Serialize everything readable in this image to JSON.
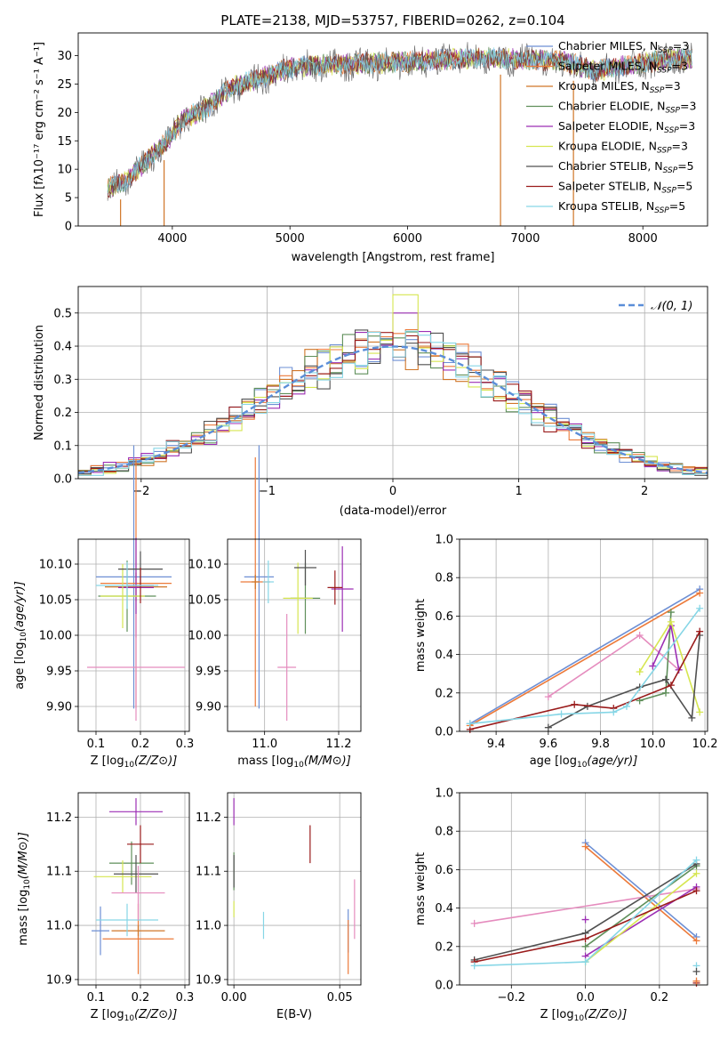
{
  "figure_title": "PLATE=2138, MJD=53757, FIBERID=0262, z=0.104",
  "series_colors": {
    "Chabrier MILES": "#6d8fd4",
    "Salpeter MILES": "#ec7a3a",
    "Kroupa MILES": "#d07628",
    "Chabrier ELODIE": "#5f8f5a",
    "Salpeter ELODIE": "#9c2fb4",
    "Kroupa ELODIE": "#d6e650",
    "Chabrier STELIB": "#505050",
    "Salpeter STELIB": "#9a1b1b",
    "Kroupa STELIB": "#86d6e6",
    "pink": "#e58cbe"
  },
  "chart_data": [
    {
      "id": "spectrum",
      "type": "line",
      "title": "PLATE=2138, MJD=53757, FIBERID=0262, z=0.104",
      "xlabel": "wavelength [Angstrom, rest frame]",
      "ylabel": "Flux [fλ10⁻¹⁷ erg cm⁻² s⁻¹ A⁻¹]",
      "xlim": [
        3200,
        8550
      ],
      "ylim": [
        0,
        34
      ],
      "xticks": [
        4000,
        5000,
        6000,
        7000,
        8000
      ],
      "yticks": [
        0,
        5,
        10,
        15,
        20,
        25,
        30
      ],
      "grid": false,
      "legend_position": "right",
      "legend": [
        {
          "label": "Chabrier MILES, N",
          "sub": "SSP",
          "suffix": "=3"
        },
        {
          "label": "Salpeter MILES, N",
          "sub": "SSP",
          "suffix": "=3"
        },
        {
          "label": "Kroupa MILES, N",
          "sub": "SSP",
          "suffix": "=3"
        },
        {
          "label": "Chabrier ELODIE, N",
          "sub": "SSP",
          "suffix": "=3"
        },
        {
          "label": "Salpeter ELODIE, N",
          "sub": "SSP",
          "suffix": "=3"
        },
        {
          "label": "Kroupa ELODIE, N",
          "sub": "SSP",
          "suffix": "=3"
        },
        {
          "label": "Chabrier STELIB, N",
          "sub": "SSP",
          "suffix": "=5"
        },
        {
          "label": "Salpeter STELIB, N",
          "sub": "SSP",
          "suffix": "=5"
        },
        {
          "label": "Kroupa STELIB, N",
          "sub": "SSP",
          "suffix": "=5"
        }
      ],
      "continuum": {
        "x": [
          3450,
          3600,
          3800,
          3950,
          4100,
          4300,
          4500,
          4800,
          5000,
          5300,
          5600,
          6000,
          6300,
          6600,
          7000,
          7300,
          7600,
          7900,
          8200,
          8400
        ],
        "y": [
          6.8,
          8.0,
          12.0,
          15.0,
          19.0,
          21.0,
          24.5,
          26.5,
          28.0,
          28.5,
          28.8,
          29.0,
          29.5,
          29.8,
          29.5,
          29.2,
          27.5,
          28.5,
          29.5,
          29.5
        ]
      },
      "drop_lines_x": [
        3560,
        3930,
        6790,
        7410
      ]
    },
    {
      "id": "residuals",
      "type": "histogram",
      "xlabel": "(data-model)/error",
      "ylabel": "Normed distribution",
      "xlim": [
        -2.5,
        2.5
      ],
      "ylim": [
        0,
        0.58
      ],
      "xticks": [
        -2,
        -1,
        0,
        1,
        2
      ],
      "yticks": [
        0.0,
        0.1,
        0.2,
        0.3,
        0.4,
        0.5
      ],
      "grid": true,
      "bin_width": 0.1,
      "legend_position": "upper right",
      "reference_curve": {
        "name": "𝒩(0, 1)",
        "mu": 0,
        "sigma": 1
      }
    },
    {
      "id": "age-vs-Z",
      "type": "scatter",
      "xlabel": "Z [log10(Z/Z⊙)]",
      "ylabel": "age  [log10(age/yr)]",
      "xlim": [
        0.06,
        0.31
      ],
      "ylim": [
        9.865,
        10.135
      ],
      "xticks": [
        0.1,
        0.2,
        0.3
      ],
      "yticks": [
        9.9,
        9.95,
        10.0,
        10.05,
        10.1
      ],
      "grid": true,
      "points": [
        {
          "c": "Chabrier MILES",
          "x": 0.185,
          "y": 10.082,
          "xerr": 0.085,
          "yerr": 0.185
        },
        {
          "c": "Salpeter MILES",
          "x": 0.19,
          "y": 10.073,
          "xerr": 0.08,
          "yerr": 0.175
        },
        {
          "c": "Kroupa MILES",
          "x": 0.19,
          "y": 10.068,
          "xerr": 0.07,
          "yerr": 0.02
        },
        {
          "c": "Chabrier ELODIE",
          "x": 0.17,
          "y": 10.055,
          "xerr": 0.065,
          "yerr": 0.05
        },
        {
          "c": "Salpeter ELODIE",
          "x": 0.19,
          "y": 10.067,
          "xerr": 0.04,
          "yerr": 0.07
        },
        {
          "c": "Kroupa ELODIE",
          "x": 0.16,
          "y": 10.055,
          "xerr": 0.05,
          "yerr": 0.045
        },
        {
          "c": "Chabrier STELIB",
          "x": 0.2,
          "y": 10.093,
          "xerr": 0.05,
          "yerr": 0.025
        },
        {
          "c": "Salpeter STELIB",
          "x": 0.2,
          "y": 10.07,
          "xerr": 0.03,
          "yerr": 0.025
        },
        {
          "c": "Kroupa STELIB",
          "x": 0.17,
          "y": 10.07,
          "xerr": 0.07,
          "yerr": 0.033
        },
        {
          "c": "pink",
          "x": 0.19,
          "y": 9.955,
          "xerr": 0.11,
          "yerr": 0.075
        }
      ]
    },
    {
      "id": "age-vs-mass",
      "type": "scatter",
      "xlabel": "mass [log10(M/M⊙)]",
      "ylabel": "",
      "xlim": [
        10.9,
        11.26
      ],
      "ylim": [
        9.865,
        10.135
      ],
      "xticks": [
        11.0,
        11.2
      ],
      "yticks": [
        9.9,
        9.95,
        10.0,
        10.05,
        10.1
      ],
      "grid": true,
      "points": [
        {
          "c": "Chabrier MILES",
          "x": 10.985,
          "y": 10.082,
          "xerr": 0.04,
          "yerr": 0.185
        },
        {
          "c": "Salpeter MILES",
          "x": 10.975,
          "y": 10.075,
          "xerr": 0.04,
          "yerr": 0.175
        },
        {
          "c": "Kroupa MILES",
          "x": 10.975,
          "y": 10.075,
          "xerr": 0.01,
          "yerr": 0.01
        },
        {
          "c": "Chabrier ELODIE",
          "x": 11.11,
          "y": 10.052,
          "xerr": 0.04,
          "yerr": 0.05
        },
        {
          "c": "Salpeter ELODIE",
          "x": 11.21,
          "y": 10.065,
          "xerr": 0.03,
          "yerr": 0.06
        },
        {
          "c": "Kroupa ELODIE",
          "x": 11.09,
          "y": 10.052,
          "xerr": 0.04,
          "yerr": 0.05
        },
        {
          "c": "Chabrier STELIB",
          "x": 11.11,
          "y": 10.095,
          "xerr": 0.03,
          "yerr": 0.025
        },
        {
          "c": "Salpeter STELIB",
          "x": 11.19,
          "y": 10.067,
          "xerr": 0.02,
          "yerr": 0.024
        },
        {
          "c": "Kroupa STELIB",
          "x": 11.01,
          "y": 10.075,
          "xerr": 0.015,
          "yerr": 0.03
        },
        {
          "c": "pink",
          "x": 11.06,
          "y": 9.955,
          "xerr": 0.025,
          "yerr": 0.075
        }
      ]
    },
    {
      "id": "weights-vs-age",
      "type": "line",
      "xlabel": "age  [log10(age/yr)]",
      "ylabel": "mass weight",
      "xlim": [
        9.26,
        10.21
      ],
      "ylim": [
        0,
        1
      ],
      "xticks": [
        9.4,
        9.6,
        9.8,
        10.0,
        10.2
      ],
      "yticks": [
        0.0,
        0.2,
        0.4,
        0.6,
        0.8,
        1.0
      ],
      "grid": true,
      "series": [
        {
          "c": "Chabrier MILES",
          "x": [
            9.3,
            10.18
          ],
          "y": [
            0.04,
            0.74
          ]
        },
        {
          "c": "Salpeter MILES",
          "x": [
            9.3,
            10.18
          ],
          "y": [
            0.03,
            0.72
          ]
        },
        {
          "c": "pink",
          "x": [
            9.6,
            9.95,
            10.1
          ],
          "y": [
            0.18,
            0.5,
            0.32
          ]
        },
        {
          "c": "Chabrier ELODIE",
          "x": [
            9.95,
            10.05,
            10.07
          ],
          "y": [
            0.16,
            0.2,
            0.62
          ]
        },
        {
          "c": "Salpeter ELODIE",
          "x": [
            10.0,
            10.07,
            10.1
          ],
          "y": [
            0.34,
            0.55,
            0.32
          ]
        },
        {
          "c": "Kroupa ELODIE",
          "x": [
            9.95,
            10.07,
            10.18
          ],
          "y": [
            0.31,
            0.57,
            0.1
          ]
        },
        {
          "c": "Chabrier STELIB",
          "x": [
            9.6,
            9.75,
            9.95,
            10.05,
            10.15,
            10.18
          ],
          "y": [
            0.02,
            0.13,
            0.23,
            0.27,
            0.07,
            0.5
          ]
        },
        {
          "c": "Salpeter STELIB",
          "x": [
            9.3,
            9.7,
            9.85,
            10.07,
            10.18
          ],
          "y": [
            0.01,
            0.14,
            0.12,
            0.24,
            0.52
          ]
        },
        {
          "c": "Kroupa STELIB",
          "x": [
            9.3,
            9.65,
            9.85,
            9.9,
            10.18
          ],
          "y": [
            0.04,
            0.09,
            0.1,
            0.13,
            0.64
          ]
        }
      ]
    },
    {
      "id": "mass-vs-Z",
      "type": "scatter",
      "xlabel": "Z [log10(Z/Z⊙)]",
      "ylabel": "mass [log10(M/M⊙)]",
      "xlim": [
        0.06,
        0.31
      ],
      "ylim": [
        10.89,
        11.245
      ],
      "xticks": [
        0.1,
        0.2,
        0.3
      ],
      "yticks": [
        10.9,
        11.0,
        11.1,
        11.2
      ],
      "grid": true,
      "points": [
        {
          "c": "Chabrier MILES",
          "x": 0.11,
          "y": 10.99,
          "xerr": 0.02,
          "yerr": 0.045
        },
        {
          "c": "Salpeter MILES",
          "x": 0.195,
          "y": 10.975,
          "xerr": 0.08,
          "yerr": 0.065
        },
        {
          "c": "Kroupa MILES",
          "x": 0.195,
          "y": 10.99,
          "xerr": 0.06,
          "yerr": 0.01
        },
        {
          "c": "Chabrier ELODIE",
          "x": 0.18,
          "y": 11.115,
          "xerr": 0.05,
          "yerr": 0.04
        },
        {
          "c": "Salpeter ELODIE",
          "x": 0.19,
          "y": 11.21,
          "xerr": 0.06,
          "yerr": 0.025
        },
        {
          "c": "Kroupa ELODIE",
          "x": 0.16,
          "y": 11.09,
          "xerr": 0.065,
          "yerr": 0.03
        },
        {
          "c": "Chabrier STELIB",
          "x": 0.19,
          "y": 11.095,
          "xerr": 0.05,
          "yerr": 0.035
        },
        {
          "c": "Salpeter STELIB",
          "x": 0.2,
          "y": 11.15,
          "xerr": 0.03,
          "yerr": 0.035
        },
        {
          "c": "Kroupa STELIB",
          "x": 0.17,
          "y": 11.01,
          "xerr": 0.07,
          "yerr": 0.03
        },
        {
          "c": "pink",
          "x": 0.195,
          "y": 11.06,
          "xerr": 0.06,
          "yerr": 0.05
        }
      ]
    },
    {
      "id": "mass-vs-ebv",
      "type": "scatter",
      "xlabel": "E(B-V)",
      "ylabel": "",
      "xlim": [
        -0.003,
        0.06
      ],
      "ylim": [
        10.89,
        11.245
      ],
      "xticks": [
        0.0,
        0.05
      ],
      "yticks": [
        10.9,
        11.0,
        11.1,
        11.2
      ],
      "grid": true,
      "points": [
        {
          "c": "Chabrier MILES",
          "x": 0.054,
          "y": 10.99,
          "xerr": 0,
          "yerr": 0.04
        },
        {
          "c": "Salpeter MILES",
          "x": 0.054,
          "y": 10.96,
          "xerr": 0,
          "yerr": 0.05
        },
        {
          "c": "Chabrier ELODIE",
          "x": 0.0,
          "y": 11.1,
          "xerr": 0,
          "yerr": 0.035
        },
        {
          "c": "Salpeter ELODIE",
          "x": 0.0,
          "y": 11.21,
          "xerr": 0,
          "yerr": 0.025
        },
        {
          "c": "Kroupa ELODIE",
          "x": 0.0,
          "y": 11.03,
          "xerr": 0,
          "yerr": 0.015
        },
        {
          "c": "Chabrier STELIB",
          "x": 0.0,
          "y": 11.1,
          "xerr": 0,
          "yerr": 0.03
        },
        {
          "c": "Salpeter STELIB",
          "x": 0.036,
          "y": 11.15,
          "xerr": 0,
          "yerr": 0.035
        },
        {
          "c": "Kroupa STELIB",
          "x": 0.014,
          "y": 11.0,
          "xerr": 0,
          "yerr": 0.025
        },
        {
          "c": "pink",
          "x": 0.057,
          "y": 11.03,
          "xerr": 0,
          "yerr": 0.055
        }
      ]
    },
    {
      "id": "weights-vs-Z",
      "type": "line",
      "xlabel": "Z [log10(Z/Z⊙)]",
      "ylabel": "mass weight",
      "xlim": [
        -0.34,
        0.33
      ],
      "ylim": [
        0,
        1
      ],
      "xticks": [
        -0.2,
        0.0,
        0.2
      ],
      "yticks": [
        0.0,
        0.2,
        0.4,
        0.6,
        0.8,
        1.0
      ],
      "grid": true,
      "series": [
        {
          "c": "Chabrier MILES",
          "x": [
            0.0,
            0.3
          ],
          "y": [
            0.74,
            0.25
          ]
        },
        {
          "c": "Salpeter MILES",
          "x": [
            0.0,
            0.3
          ],
          "y": [
            0.72,
            0.23
          ]
        },
        {
          "c": "pink",
          "x": [
            -0.3,
            0.3
          ],
          "y": [
            0.32,
            0.5
          ]
        },
        {
          "c": "Chabrier ELODIE",
          "x": [
            0.0,
            0.3
          ],
          "y": [
            0.2,
            0.62
          ]
        },
        {
          "c": "Salpeter ELODIE",
          "x": [
            0.0,
            0.3
          ],
          "y": [
            0.15,
            0.51
          ]
        },
        {
          "c": "Kroupa ELODIE",
          "x": [
            0.0,
            0.3
          ],
          "y": [
            0.12,
            0.58
          ]
        },
        {
          "c": "Chabrier STELIB",
          "x": [
            -0.3,
            0.0,
            0.3
          ],
          "y": [
            0.13,
            0.27,
            0.63
          ]
        },
        {
          "c": "Salpeter STELIB",
          "x": [
            -0.3,
            0.0,
            0.3
          ],
          "y": [
            0.12,
            0.24,
            0.49
          ]
        },
        {
          "c": "Kroupa STELIB",
          "x": [
            -0.3,
            0.0,
            0.3
          ],
          "y": [
            0.1,
            0.12,
            0.65
          ]
        }
      ],
      "extra_markers": [
        {
          "c": "Salpeter ELODIE",
          "x": 0.0,
          "y": 0.34
        },
        {
          "c": "Salpeter STELIB",
          "x": 0.3,
          "y": 0.01
        },
        {
          "c": "Salpeter MILES",
          "x": 0.3,
          "y": 0.02
        },
        {
          "c": "Kroupa STELIB",
          "x": 0.3,
          "y": 0.1
        },
        {
          "c": "Chabrier STELIB",
          "x": 0.3,
          "y": 0.07
        }
      ]
    }
  ]
}
